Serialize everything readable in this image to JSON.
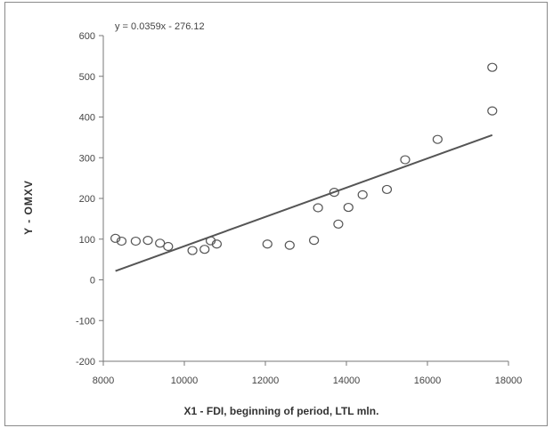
{
  "chart_data": {
    "type": "scatter",
    "title": "",
    "xlabel": "X1 - FDI, beginning of period, LTL mln.",
    "ylabel": "Y - OMXV",
    "xlim": [
      8000,
      18000
    ],
    "ylim": [
      -200,
      600
    ],
    "x_ticks": [
      8000,
      10000,
      12000,
      14000,
      16000,
      18000
    ],
    "y_ticks": [
      -200,
      -100,
      0,
      100,
      200,
      300,
      400,
      500,
      600
    ],
    "grid": false,
    "legend": "none",
    "marker_color": "#555555",
    "line_color": "#555555",
    "points": [
      {
        "x": 8300,
        "y": 102
      },
      {
        "x": 8450,
        "y": 95
      },
      {
        "x": 8800,
        "y": 95
      },
      {
        "x": 9100,
        "y": 97
      },
      {
        "x": 9400,
        "y": 90
      },
      {
        "x": 9600,
        "y": 82
      },
      {
        "x": 10200,
        "y": 72
      },
      {
        "x": 10500,
        "y": 75
      },
      {
        "x": 10650,
        "y": 96
      },
      {
        "x": 10800,
        "y": 88
      },
      {
        "x": 12050,
        "y": 88
      },
      {
        "x": 12600,
        "y": 85
      },
      {
        "x": 13200,
        "y": 97
      },
      {
        "x": 13300,
        "y": 177
      },
      {
        "x": 13700,
        "y": 215
      },
      {
        "x": 13800,
        "y": 137
      },
      {
        "x": 14050,
        "y": 178
      },
      {
        "x": 14400,
        "y": 209
      },
      {
        "x": 15000,
        "y": 222
      },
      {
        "x": 15450,
        "y": 295
      },
      {
        "x": 16250,
        "y": 345
      },
      {
        "x": 17600,
        "y": 522
      },
      {
        "x": 17600,
        "y": 415
      }
    ],
    "trendline": {
      "equation": "y = 0.0359x - 276.12",
      "slope": 0.0359,
      "intercept": -276.12,
      "x_start": 8300,
      "x_end": 17600
    }
  }
}
